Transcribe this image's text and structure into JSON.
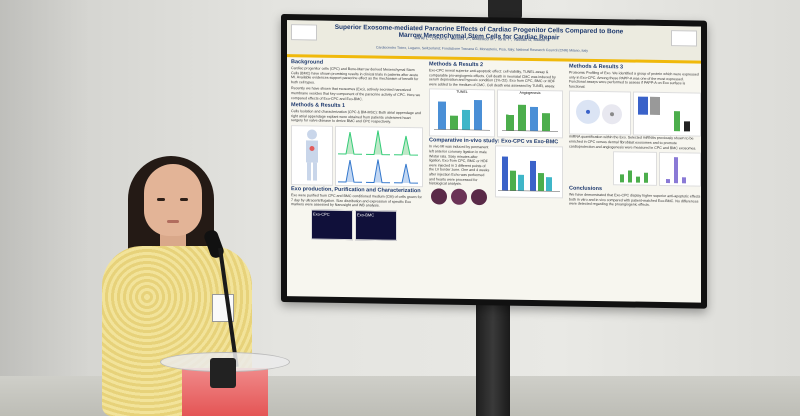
{
  "poster": {
    "title": "Superior Exosome-mediated Paracrine Effects of Cardiac Progenitor Cells Compared to Bone Marrow Mesenchymal Stem Cells for Cardiac Repair",
    "authors": "Barile L*, Cervio E*, Biemmi V*, Matteucci M*, Torre T*, Vassalli G, Milano G",
    "affiliation": "Cardiocentro Ticino, Lugano, Switzerland; Fondazione Toscana G. Monasterio, Pisa, Italy; National Research Council (CNR) Milano, Italy",
    "left_col": {
      "bg_title": "Background",
      "bg_text": "Cardiac progenitor cells (CPC) and Bone-Marrow derived Mesenchymal Stem Cells (BMC) have shown promising results in clinical trials in patients after acute MI. Available evidences support paracrine effect as the mechanism of benefit for both cell types.",
      "bg_text2": "Recently we have shown that exosomes (Exo), actively secreted nanosized membrane vesicles that key component of the paracrine activity of CPC. Here we compared effects of Exo-CPC and Exo-BMC.",
      "mr_title": "Methods & Results 1",
      "mr_text": "Cells Isolation and characterization (CPC & BM-MSC): Both atrial appendage and right atrial appendage explant were obtained from patients underwent heart surgery for valve disease to derive BMC and CPC respectively.",
      "exo_title": "Exo production, Purification and Characterization",
      "exo_text": "Exo were purified from CPC and BMC conditioned medium (CM) of cells grown for 7 day by ultracentrifugation. Size distribution and expression of specific Exo markers were assessed by Nanosight and WB analysis.",
      "img_labels": [
        "Exo-CPC",
        "Exo-BMC"
      ]
    },
    "mid_col": {
      "mr2_title": "Methods & Results 2",
      "mr2_text": "Exo-CPC reveal superior anti-apoptotic effect: cell viability, TUNEL assay & comparable pro-angiogenic effects. Cell death in neonatal CMC was induced by serum deprivation and hypoxic condition (1% O2). Exo from CPC, BMC or HDF were added to the medium of CMC. Cell death was assessed by TUNEL assay.",
      "chart1_title": "TUNEL",
      "chart2_title": "Angiogenesis",
      "invivo_title": "Comparative in-vivo study: Exo-CPC vs Exo-BMC",
      "invivo_text": "In vivo MI was induced by permanent left anterior coronary ligation in male Wistar rats. Sixty minutes after ligation, Exo from CPC, BMC or HDF were injected in 3 different points of the LV border zone. One and 4 weeks after injection Echo was performed and hearts were processed for histological analysis."
    },
    "right_col": {
      "mr3_title": "Methods & Results 3",
      "mr3_text": "Proteomic Profiling of Exo. We identified a group of protein which were expressed only in Exo-CPC. Among these PAPP-A was one of the most expressed. Functional assays were performed to assess if PAPP-A on Exo surface is functional.",
      "mirna_text": "miRNA quantification within the Exo. Selected miRNAs previously shown to be enriched in CPC versus dermal fibroblast exosomes and to promote cardioprotection and angiogenesis were measured in CPC and BMC exosomes.",
      "concl_title": "Conclusions",
      "concl_text": "We have demonstrated that Exo-CPC display higher superior anti-apoptotic effects both in vitro and in vivo compared with patient-matched Exo-BMC. No differences were detected regarding the proangiogenic effects."
    }
  },
  "colors": {
    "title": "#1f3a6e",
    "accent_bar": "#f0b90b",
    "bar_blue": "#4a8fd6",
    "bar_green": "#4cae4c",
    "bar_cyan": "#3fb6c8"
  }
}
